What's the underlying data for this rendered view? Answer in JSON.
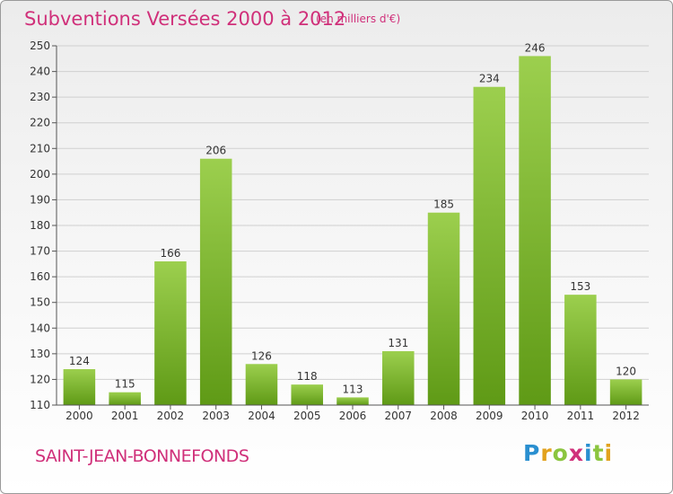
{
  "header": {
    "title": "Subventions Versées 2000 à 2012",
    "subtitle": "(en milliers d'€)"
  },
  "footer": {
    "city": "SAINT-JEAN-BONNEFONDS",
    "logo": "Proxiti"
  },
  "colors": {
    "accent": "#d0307a",
    "bar_top": "#9ccf4e",
    "bar_bottom": "#5f9a16"
  },
  "chart_data": {
    "type": "bar",
    "categories": [
      "2000",
      "2001",
      "2002",
      "2003",
      "2004",
      "2005",
      "2006",
      "2007",
      "2008",
      "2009",
      "2010",
      "2011",
      "2012"
    ],
    "values": [
      124,
      115,
      166,
      206,
      126,
      118,
      113,
      131,
      185,
      234,
      246,
      153,
      120
    ],
    "title": "Subventions Versées 2000 à 2012",
    "subtitle": "(en milliers d'€)",
    "xlabel": "",
    "ylabel": "",
    "ylim": [
      110,
      250
    ],
    "yticks": [
      110,
      120,
      130,
      140,
      150,
      160,
      170,
      180,
      190,
      200,
      210,
      220,
      230,
      240,
      250
    ],
    "grid": true,
    "data_labels": true
  }
}
